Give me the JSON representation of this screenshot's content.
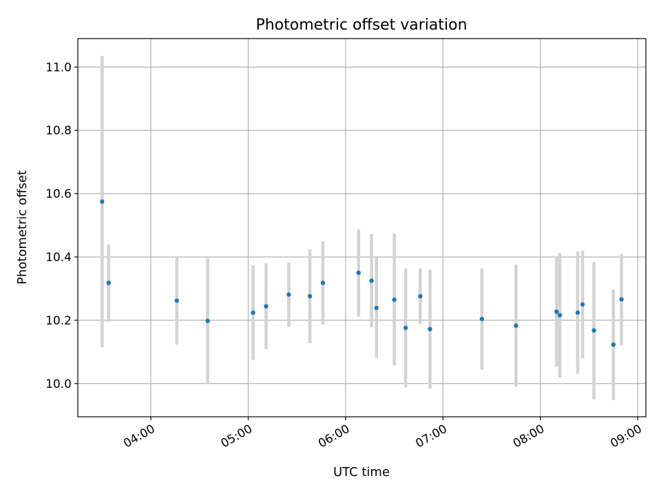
{
  "chart_data": {
    "type": "scatter",
    "title": "Photometric offset variation",
    "xlabel": "UTC time",
    "ylabel": "Photometric offset",
    "xlim": [
      "03:15",
      "09:05"
    ],
    "ylim": [
      9.895,
      11.09
    ],
    "grid": true,
    "x_ticks": [
      "04:00",
      "05:00",
      "06:00",
      "07:00",
      "08:00",
      "09:00"
    ],
    "y_ticks": [
      "10.0",
      "10.2",
      "10.4",
      "10.6",
      "10.8",
      "11.0"
    ],
    "colors": {
      "point": "#1f77b4",
      "errorbar": "#d3d3d3",
      "grid": "#b0b0b0"
    },
    "points": [
      {
        "x": "03:30",
        "y": 10.575,
        "ylow": 10.115,
        "yhigh": 11.035
      },
      {
        "x": "03:34",
        "y": 10.318,
        "ylow": 10.195,
        "yhigh": 10.44
      },
      {
        "x": "04:16",
        "y": 10.262,
        "ylow": 10.123,
        "yhigh": 10.4
      },
      {
        "x": "04:35",
        "y": 10.198,
        "ylow": 10.0,
        "yhigh": 10.396
      },
      {
        "x": "05:03",
        "y": 10.224,
        "ylow": 10.075,
        "yhigh": 10.373
      },
      {
        "x": "05:11",
        "y": 10.244,
        "ylow": 10.108,
        "yhigh": 10.38
      },
      {
        "x": "05:25",
        "y": 10.281,
        "ylow": 10.18,
        "yhigh": 10.382
      },
      {
        "x": "05:38",
        "y": 10.276,
        "ylow": 10.128,
        "yhigh": 10.424
      },
      {
        "x": "05:46",
        "y": 10.318,
        "ylow": 10.186,
        "yhigh": 10.45
      },
      {
        "x": "06:08",
        "y": 10.35,
        "ylow": 10.212,
        "yhigh": 10.487
      },
      {
        "x": "06:16",
        "y": 10.325,
        "ylow": 10.178,
        "yhigh": 10.472
      },
      {
        "x": "06:19",
        "y": 10.239,
        "ylow": 10.081,
        "yhigh": 10.398
      },
      {
        "x": "06:30",
        "y": 10.265,
        "ylow": 10.057,
        "yhigh": 10.474
      },
      {
        "x": "06:37",
        "y": 10.176,
        "ylow": 9.988,
        "yhigh": 10.364
      },
      {
        "x": "06:46",
        "y": 10.276,
        "ylow": 10.188,
        "yhigh": 10.364
      },
      {
        "x": "06:52",
        "y": 10.172,
        "ylow": 9.984,
        "yhigh": 10.36
      },
      {
        "x": "07:24",
        "y": 10.204,
        "ylow": 10.044,
        "yhigh": 10.364
      },
      {
        "x": "07:45",
        "y": 10.183,
        "ylow": 9.99,
        "yhigh": 10.376
      },
      {
        "x": "08:10",
        "y": 10.227,
        "ylow": 10.053,
        "yhigh": 10.4
      },
      {
        "x": "08:12",
        "y": 10.216,
        "ylow": 10.018,
        "yhigh": 10.413
      },
      {
        "x": "08:23",
        "y": 10.224,
        "ylow": 10.031,
        "yhigh": 10.417
      },
      {
        "x": "08:26",
        "y": 10.25,
        "ylow": 10.08,
        "yhigh": 10.419
      },
      {
        "x": "08:33",
        "y": 10.168,
        "ylow": 9.95,
        "yhigh": 10.384
      },
      {
        "x": "08:45",
        "y": 10.123,
        "ylow": 9.948,
        "yhigh": 10.297
      },
      {
        "x": "08:50",
        "y": 10.266,
        "ylow": 10.121,
        "yhigh": 10.41
      }
    ]
  }
}
